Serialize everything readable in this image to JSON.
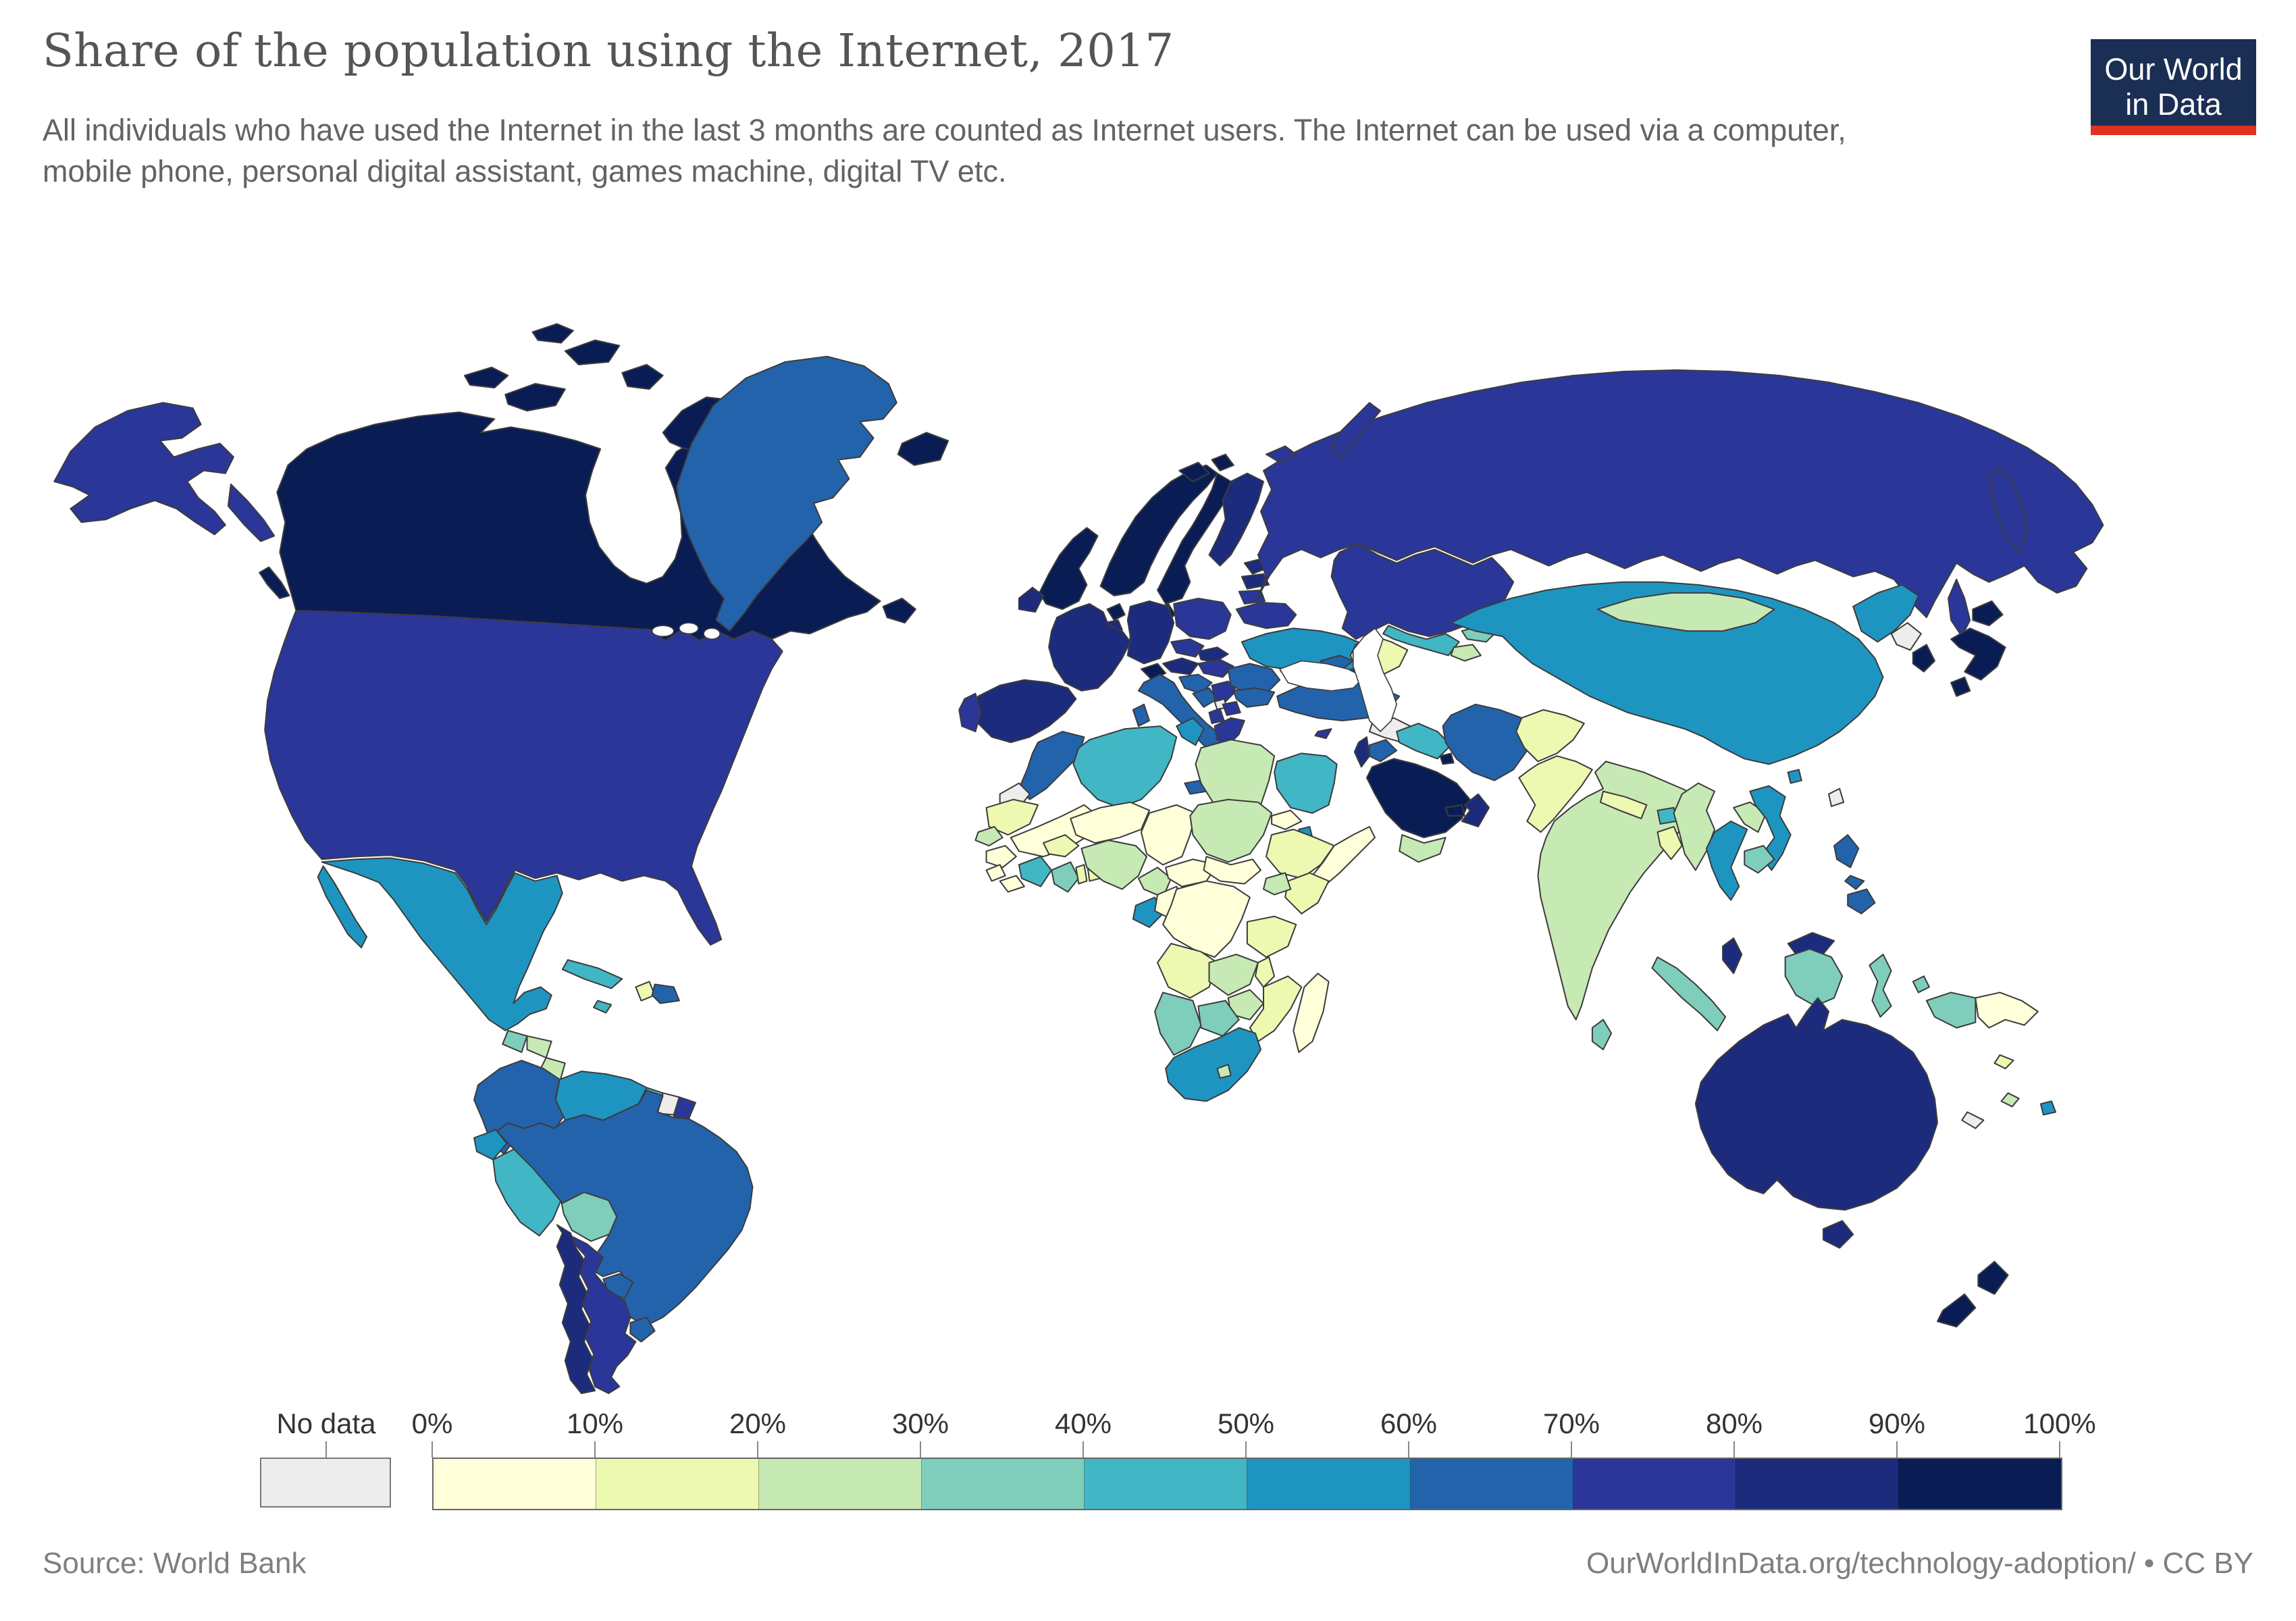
{
  "header": {
    "title": "Share of the population using the Internet, 2017",
    "subtitle": "All individuals who have used the Internet in the last 3 months are counted as Internet users. The Internet can be used via a computer, mobile phone, personal digital assistant, games machine, digital TV etc.",
    "logo": {
      "line1": "Our World",
      "line2": "in Data",
      "bg_color": "#1b2e54",
      "bar_color": "#e03121"
    }
  },
  "legend": {
    "no_data_label": "No data",
    "no_data_color": "#ededed",
    "tick_labels": [
      "0%",
      "10%",
      "20%",
      "30%",
      "40%",
      "50%",
      "60%",
      "70%",
      "80%",
      "90%",
      "100%"
    ],
    "bin_colors": [
      "#ffffd9",
      "#edf8b1",
      "#c7e9b4",
      "#7fcdbb",
      "#41b6c4",
      "#1e95c1",
      "#2363ac",
      "#2b3699",
      "#1c2b7c",
      "#0a1c54"
    ]
  },
  "footer": {
    "source": "Source: World Bank",
    "credit": "OurWorldInData.org/technology-adoption/ • CC BY"
  },
  "chart_data": {
    "type": "heatmap",
    "subtype": "choropleth-world-map",
    "title": "Share of the population using the Internet, 2017",
    "unit": "% of population using the Internet",
    "year": 2017,
    "source": "World Bank",
    "legend_bins": [
      0,
      10,
      20,
      30,
      40,
      50,
      60,
      70,
      80,
      90,
      100
    ],
    "countries": {
      "canada": {
        "name": "Canada",
        "value": 93
      },
      "usa": {
        "name": "United States",
        "value": 76
      },
      "greenland": {
        "name": "Greenland",
        "value": 68
      },
      "iceland": {
        "name": "Iceland",
        "value": 98
      },
      "mexico": {
        "name": "Mexico",
        "value": 59
      },
      "guatemala": {
        "name": "Guatemala",
        "value": 35
      },
      "honduras": {
        "name": "Honduras",
        "value": 28
      },
      "nicaragua": {
        "name": "Nicaragua",
        "value": 25
      },
      "costa-rica": {
        "name": "Costa Rica",
        "value": 72
      },
      "panama": {
        "name": "Panama",
        "value": 48
      },
      "cuba": {
        "name": "Cuba",
        "value": 44
      },
      "jamaica": {
        "name": "Jamaica",
        "value": 45
      },
      "haiti": {
        "name": "Haiti",
        "value": 12
      },
      "dominican-republic": {
        "name": "Dominican Republic",
        "value": 67
      },
      "colombia": {
        "name": "Colombia",
        "value": 62
      },
      "venezuela": {
        "name": "Venezuela",
        "value": 58
      },
      "guyana": {
        "name": "Guyana",
        "value": 43
      },
      "suriname": {
        "name": "Suriname",
        "value": null
      },
      "french-guiana": {
        "name": "French Guiana",
        "value": 75
      },
      "ecuador": {
        "name": "Ecuador",
        "value": 57
      },
      "peru": {
        "name": "Peru",
        "value": 49
      },
      "bolivia": {
        "name": "Bolivia",
        "value": 36
      },
      "brazil": {
        "name": "Brazil",
        "value": 67
      },
      "paraguay": {
        "name": "Paraguay",
        "value": 65
      },
      "uruguay": {
        "name": "Uruguay",
        "value": 68
      },
      "argentina": {
        "name": "Argentina",
        "value": 74
      },
      "chile": {
        "name": "Chile",
        "value": 82
      },
      "uk": {
        "name": "United Kingdom",
        "value": 94
      },
      "ireland": {
        "name": "Ireland",
        "value": 85
      },
      "norway": {
        "name": "Norway",
        "value": 97
      },
      "sweden": {
        "name": "Sweden",
        "value": 93
      },
      "finland": {
        "name": "Finland",
        "value": 88
      },
      "denmark": {
        "name": "Denmark",
        "value": 97
      },
      "netherlands": {
        "name": "Netherlands",
        "value": 93
      },
      "belgium": {
        "name": "Belgium",
        "value": 88
      },
      "germany": {
        "name": "Germany",
        "value": 84
      },
      "france": {
        "name": "France",
        "value": 85
      },
      "spain": {
        "name": "Spain",
        "value": 85
      },
      "portugal": {
        "name": "Portugal",
        "value": 74
      },
      "switzerland": {
        "name": "Switzerland",
        "value": 94
      },
      "austria": {
        "name": "Austria",
        "value": 88
      },
      "italy": {
        "name": "Italy",
        "value": 61
      },
      "poland": {
        "name": "Poland",
        "value": 76
      },
      "czechia": {
        "name": "Czechia",
        "value": 79
      },
      "slovakia": {
        "name": "Slovakia",
        "value": 82
      },
      "hungary": {
        "name": "Hungary",
        "value": 77
      },
      "croatia": {
        "name": "Croatia",
        "value": 67
      },
      "bosnia": {
        "name": "Bosnia and Herzegovina",
        "value": 69
      },
      "serbia": {
        "name": "Serbia",
        "value": 73
      },
      "albania": {
        "name": "Albania",
        "value": 72
      },
      "macedonia": {
        "name": "North Macedonia",
        "value": 74
      },
      "kosovo": {
        "name": "Kosovo",
        "value": null
      },
      "greece": {
        "name": "Greece",
        "value": 70
      },
      "romania": {
        "name": "Romania",
        "value": 64
      },
      "bulgaria": {
        "name": "Bulgaria",
        "value": 63
      },
      "moldova": {
        "name": "Moldova",
        "value": 76
      },
      "ukraine": {
        "name": "Ukraine",
        "value": 59
      },
      "belarus": {
        "name": "Belarus",
        "value": 74
      },
      "estonia": {
        "name": "Estonia",
        "value": 88
      },
      "latvia": {
        "name": "Latvia",
        "value": 81
      },
      "lithuania": {
        "name": "Lithuania",
        "value": 78
      },
      "russia": {
        "name": "Russia",
        "value": 76
      },
      "turkey": {
        "name": "Turkey",
        "value": 65
      },
      "cyprus": {
        "name": "Cyprus",
        "value": 76
      },
      "georgia": {
        "name": "Georgia",
        "value": 60
      },
      "armenia": {
        "name": "Armenia",
        "value": 65
      },
      "azerbaijan": {
        "name": "Azerbaijan",
        "value": 78
      },
      "syria": {
        "name": "Syria",
        "value": null
      },
      "israel": {
        "name": "Israel",
        "value": 82
      },
      "jordan": {
        "name": "Jordan",
        "value": 67
      },
      "iraq": {
        "name": "Iraq",
        "value": 49
      },
      "iran": {
        "name": "Iran",
        "value": 64
      },
      "saudi-arabia": {
        "name": "Saudi Arabia",
        "value": 93
      },
      "kuwait": {
        "name": "Kuwait",
        "value": 98
      },
      "uae": {
        "name": "United Arab Emirates",
        "value": 95
      },
      "oman": {
        "name": "Oman",
        "value": 80
      },
      "yemen": {
        "name": "Yemen",
        "value": 27
      },
      "morocco": {
        "name": "Morocco",
        "value": 62
      },
      "western-sahara": {
        "name": "Western Sahara",
        "value": null
      },
      "algeria": {
        "name": "Algeria",
        "value": 48
      },
      "tunisia": {
        "name": "Tunisia",
        "value": 56
      },
      "libya": {
        "name": "Libya",
        "value": 22
      },
      "egypt": {
        "name": "Egypt",
        "value": 45
      },
      "mauritania": {
        "name": "Mauritania",
        "value": 18
      },
      "mali": {
        "name": "Mali",
        "value": 9
      },
      "senegal": {
        "name": "Senegal",
        "value": 26
      },
      "guinea": {
        "name": "Guinea",
        "value": 8
      },
      "sierra-leone": {
        "name": "Sierra Leone",
        "value": 9
      },
      "liberia": {
        "name": "Liberia",
        "value": 8
      },
      "cote-divoire": {
        "name": "Cote d'Ivoire",
        "value": 44
      },
      "burkina-faso": {
        "name": "Burkina Faso",
        "value": 16
      },
      "ghana": {
        "name": "Ghana",
        "value": 38
      },
      "togo": {
        "name": "Togo",
        "value": 12
      },
      "benin": {
        "name": "Benin",
        "value": 14
      },
      "niger": {
        "name": "Niger",
        "value": 5
      },
      "nigeria": {
        "name": "Nigeria",
        "value": 27
      },
      "chad": {
        "name": "Chad",
        "value": 6
      },
      "cameroon": {
        "name": "Cameroon",
        "value": 23
      },
      "car": {
        "name": "Central African Republic",
        "value": 4
      },
      "sudan": {
        "name": "Sudan",
        "value": 28
      },
      "south-sudan": {
        "name": "South Sudan",
        "value": 8
      },
      "eritrea": {
        "name": "Eritrea",
        "value": 1
      },
      "djibouti": {
        "name": "Djibouti",
        "value": 56
      },
      "ethiopia": {
        "name": "Ethiopia",
        "value": 19
      },
      "somalia": {
        "name": "Somalia",
        "value": 2
      },
      "kenya": {
        "name": "Kenya",
        "value": 18
      },
      "uganda": {
        "name": "Uganda",
        "value": 24
      },
      "gabon": {
        "name": "Gabon",
        "value": 50
      },
      "congo": {
        "name": "Congo",
        "value": 9
      },
      "drc": {
        "name": "Democratic Republic of Congo",
        "value": 9
      },
      "tanzania": {
        "name": "Tanzania",
        "value": 16
      },
      "angola": {
        "name": "Angola",
        "value": 14
      },
      "zambia": {
        "name": "Zambia",
        "value": 28
      },
      "malawi": {
        "name": "Malawi",
        "value": 10
      },
      "mozambique": {
        "name": "Mozambique",
        "value": 10
      },
      "zimbabwe": {
        "name": "Zimbabwe",
        "value": 27
      },
      "botswana": {
        "name": "Botswana",
        "value": 39
      },
      "namibia": {
        "name": "Namibia",
        "value": 37
      },
      "south-africa": {
        "name": "South Africa",
        "value": 56
      },
      "lesotho": {
        "name": "Lesotho",
        "value": 29
      },
      "madagascar": {
        "name": "Madagascar",
        "value": 7
      },
      "kazakhstan": {
        "name": "Kazakhstan",
        "value": 76
      },
      "uzbekistan": {
        "name": "Uzbekistan",
        "value": 47
      },
      "turkmenistan": {
        "name": "Turkmenistan",
        "value": 18
      },
      "kyrgyzstan": {
        "name": "Kyrgyzstan",
        "value": 38
      },
      "tajikistan": {
        "name": "Tajikistan",
        "value": 22
      },
      "afghanistan": {
        "name": "Afghanistan",
        "value": 14
      },
      "pakistan": {
        "name": "Pakistan",
        "value": 16
      },
      "india": {
        "name": "India",
        "value": 29
      },
      "nepal": {
        "name": "Nepal",
        "value": 17
      },
      "bhutan": {
        "name": "Bhutan",
        "value": 48
      },
      "bangladesh": {
        "name": "Bangladesh",
        "value": 15
      },
      "sri-lanka": {
        "name": "Sri Lanka",
        "value": 34
      },
      "myanmar": {
        "name": "Myanmar",
        "value": 26
      },
      "thailand": {
        "name": "Thailand",
        "value": 53
      },
      "laos": {
        "name": "Laos",
        "value": 26
      },
      "vietnam": {
        "name": "Vietnam",
        "value": 58
      },
      "cambodia": {
        "name": "Cambodia",
        "value": 34
      },
      "malaysia": {
        "name": "Malaysia",
        "value": 80
      },
      "indonesia": {
        "name": "Indonesia",
        "value": 32
      },
      "timor-leste": {
        "name": "Timor-Leste",
        "value": 27
      },
      "philippines": {
        "name": "Philippines",
        "value": 60
      },
      "papua-new-guinea": {
        "name": "Papua New Guinea",
        "value": 9
      },
      "china": {
        "name": "China",
        "value": 54
      },
      "mongolia": {
        "name": "Mongolia",
        "value": 24
      },
      "north-korea": {
        "name": "North Korea",
        "value": null
      },
      "south-korea": {
        "name": "South Korea",
        "value": 95
      },
      "japan": {
        "name": "Japan",
        "value": 91
      },
      "taiwan": {
        "name": "Taiwan",
        "value": null
      },
      "australia": {
        "name": "Australia",
        "value": 86
      },
      "new-zealand": {
        "name": "New Zealand",
        "value": 91
      },
      "fiji": {
        "name": "Fiji",
        "value": 50
      },
      "new-caledonia": {
        "name": "New Caledonia",
        "value": null
      },
      "solomon-islands": {
        "name": "Solomon Islands",
        "value": 11
      },
      "vanuatu": {
        "name": "Vanuatu",
        "value": 26
      }
    }
  }
}
